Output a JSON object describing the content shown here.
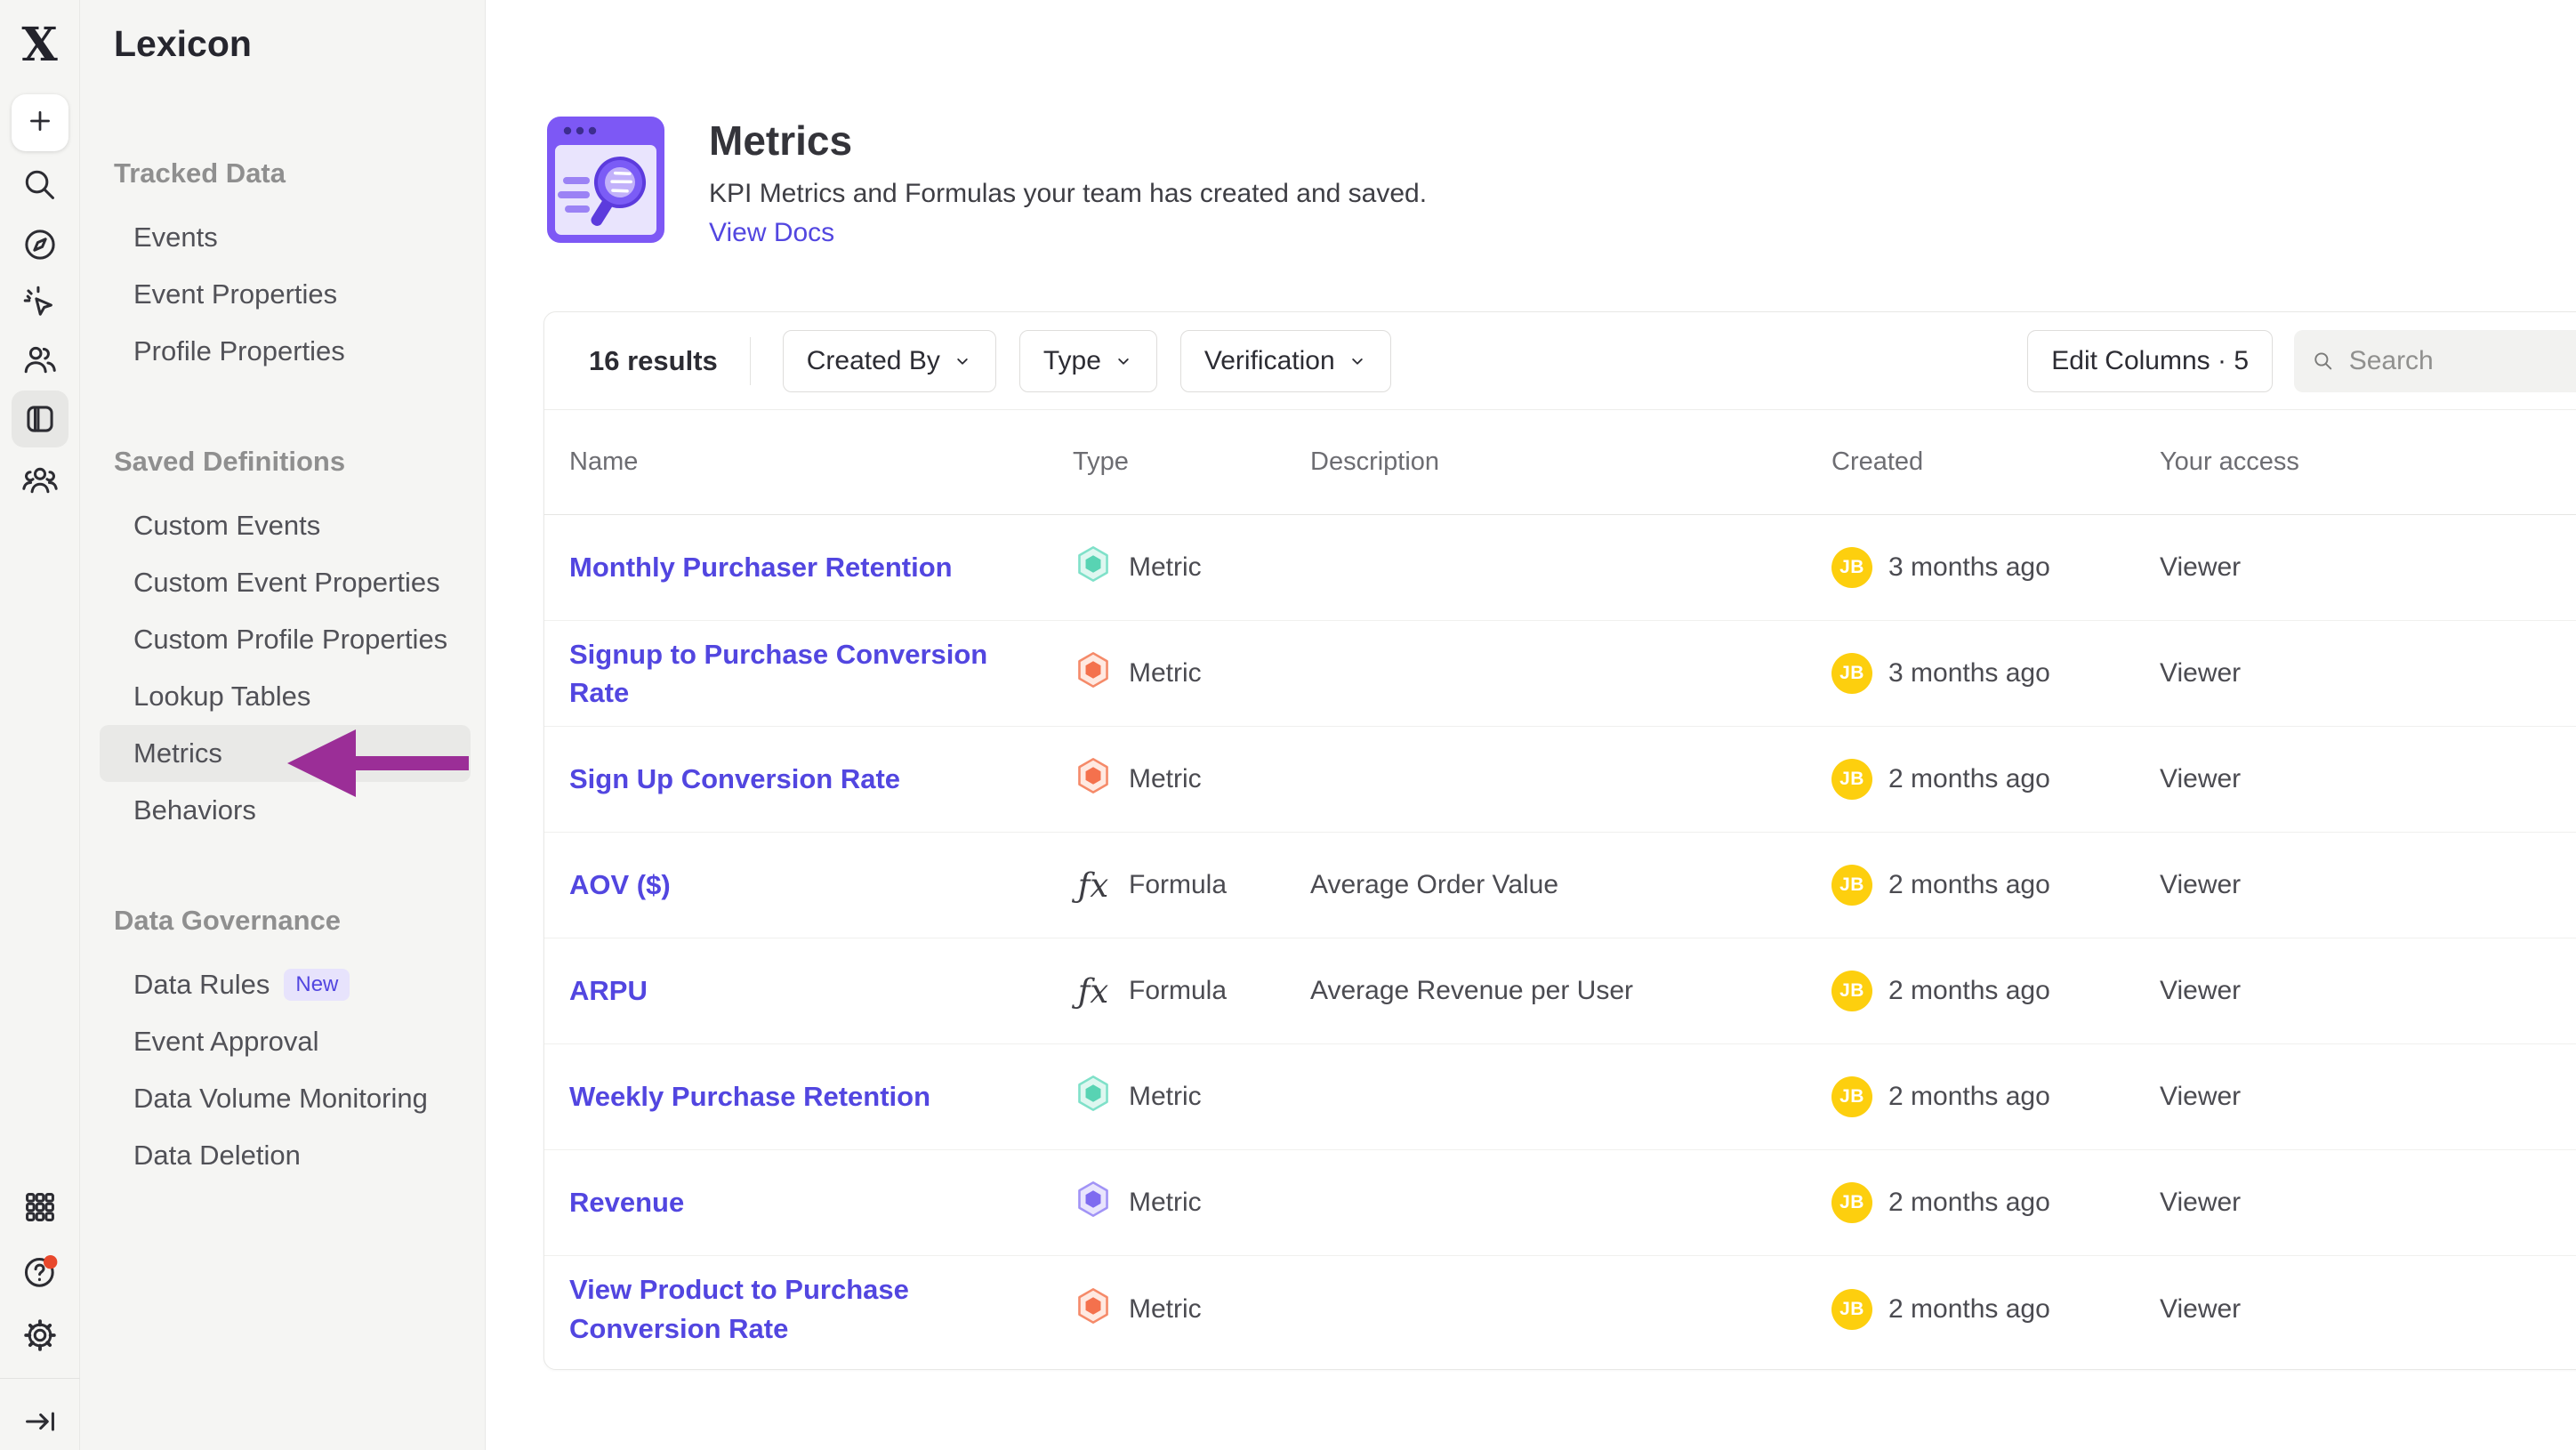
{
  "colors": {
    "accent_purple": "#5246e0",
    "arrow": "#9b2e97",
    "avatar_bg": "#fdcf0e",
    "metric_teal": "#58d3b3",
    "metric_red": "#f4714d",
    "metric_purple": "#7e6bf0",
    "new_badge_bg": "#e7e3fc",
    "help_dot": "#e8482c"
  },
  "rail": {
    "icons": [
      "mixpanel-logo",
      "plus",
      "search",
      "compass",
      "cursor-click",
      "users",
      "lexicon-panel",
      "group",
      "apps-grid",
      "help",
      "settings",
      "collapse"
    ],
    "logo_glyph": "X"
  },
  "sidebar": {
    "app_title": "Lexicon",
    "sections": [
      {
        "title": "Tracked Data",
        "items": [
          {
            "label": "Events"
          },
          {
            "label": "Event Properties"
          },
          {
            "label": "Profile Properties"
          }
        ]
      },
      {
        "title": "Saved Definitions",
        "items": [
          {
            "label": "Custom Events"
          },
          {
            "label": "Custom Event Properties"
          },
          {
            "label": "Custom Profile Properties"
          },
          {
            "label": "Lookup Tables"
          },
          {
            "label": "Metrics",
            "active": true
          },
          {
            "label": "Behaviors"
          }
        ]
      },
      {
        "title": "Data Governance",
        "items": [
          {
            "label": "Data Rules",
            "badge": "New"
          },
          {
            "label": "Event Approval"
          },
          {
            "label": "Data Volume Monitoring"
          },
          {
            "label": "Data Deletion"
          }
        ]
      }
    ]
  },
  "header": {
    "title": "Metrics",
    "subtitle": "KPI Metrics and Formulas your team has created and saved.",
    "link": "View Docs"
  },
  "toolbar": {
    "results": "16 results",
    "filters": [
      {
        "label": "Created By"
      },
      {
        "label": "Type"
      },
      {
        "label": "Verification"
      }
    ],
    "edit_columns": "Edit Columns · 5",
    "search_placeholder": "Search"
  },
  "table": {
    "columns": [
      "Name",
      "Type",
      "Description",
      "Created",
      "Your access"
    ],
    "rows": [
      {
        "name": "Monthly Purchaser Retention",
        "type": "Metric",
        "kind": "teal",
        "description": "",
        "avatar": "JB",
        "created": "3 months ago",
        "access": "Viewer"
      },
      {
        "name": "Signup to Purchase Conversion Rate",
        "type": "Metric",
        "kind": "red",
        "description": "",
        "avatar": "JB",
        "created": "3 months ago",
        "access": "Viewer"
      },
      {
        "name": "Sign Up Conversion Rate",
        "type": "Metric",
        "kind": "red",
        "description": "",
        "avatar": "JB",
        "created": "2 months ago",
        "access": "Viewer"
      },
      {
        "name": "AOV ($)",
        "type": "Formula",
        "kind": "formula",
        "description": "Average Order Value",
        "avatar": "JB",
        "created": "2 months ago",
        "access": "Viewer"
      },
      {
        "name": "ARPU",
        "type": "Formula",
        "kind": "formula",
        "description": "Average Revenue per User",
        "avatar": "JB",
        "created": "2 months ago",
        "access": "Viewer"
      },
      {
        "name": "Weekly Purchase Retention",
        "type": "Metric",
        "kind": "teal",
        "description": "",
        "avatar": "JB",
        "created": "2 months ago",
        "access": "Viewer"
      },
      {
        "name": "Revenue",
        "type": "Metric",
        "kind": "purple",
        "description": "",
        "avatar": "JB",
        "created": "2 months ago",
        "access": "Viewer"
      },
      {
        "name": "View Product to Purchase Conversion Rate",
        "type": "Metric",
        "kind": "red",
        "description": "",
        "avatar": "JB",
        "created": "2 months ago",
        "access": "Viewer"
      }
    ]
  },
  "annotation": {
    "type": "arrow-pointing-left-at-metrics-item"
  }
}
